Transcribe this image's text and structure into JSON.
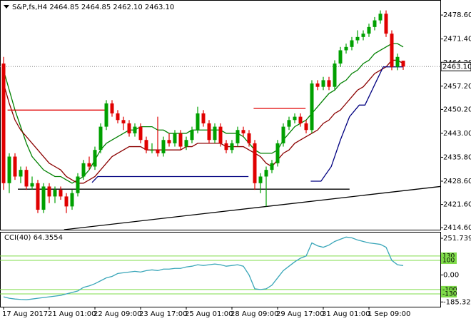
{
  "chart_data": {
    "type": "candlestick",
    "title": "S&P,fs,H4 2464.85 2464.85 2462.10 2463.10",
    "xlim": [
      -0.625,
      76.5
    ],
    "xticks": [
      {
        "value": 0,
        "label": "17 Aug 2017"
      },
      {
        "value": 8,
        "label": "21 Aug 01:00"
      },
      {
        "value": 16,
        "label": "22 Aug 09:00"
      },
      {
        "value": 24,
        "label": "23 Aug 17:00"
      },
      {
        "value": 32,
        "label": "25 Aug 01:00"
      },
      {
        "value": 40,
        "label": "28 Aug 09:00"
      },
      {
        "value": 48,
        "label": "29 Aug 17:00"
      },
      {
        "value": 56,
        "label": "31 Aug 01:00"
      },
      {
        "value": 64,
        "label": "1 Sep 09:00"
      }
    ],
    "ylim": [
      2414,
      2482.7
    ],
    "yticks": [
      {
        "value": 2478.6,
        "label": "2478.60"
      },
      {
        "value": 2471.4,
        "label": "2471.40"
      },
      {
        "value": 2464.2,
        "label": "2464.20"
      },
      {
        "value": 2457.2,
        "label": "2457.20"
      },
      {
        "value": 2450.2,
        "label": "2450.20"
      },
      {
        "value": 2443,
        "label": "2443.00"
      },
      {
        "value": 2435.8,
        "label": "2435.80"
      },
      {
        "value": 2428.6,
        "label": "2428.60"
      },
      {
        "value": 2421.6,
        "label": "2421.60"
      },
      {
        "value": 2414.6,
        "label": "2414.60"
      }
    ],
    "last_price": {
      "value": 2463.1,
      "label": "2463.10"
    },
    "up_color": "#00a000",
    "down_color": "#e00000",
    "open": [
      2464,
      2428,
      2436,
      2430,
      2432,
      2427,
      2428,
      2420,
      2427,
      2424,
      2426,
      2424,
      2421,
      2425,
      2430,
      2434,
      2433,
      2438,
      2445,
      2452,
      2449,
      2447,
      2446,
      2443,
      2445,
      2441,
      2438,
      2438,
      2437,
      2441,
      2440,
      2443,
      2439,
      2441,
      2444,
      2449,
      2446,
      2441,
      2445,
      2440,
      2438,
      2440,
      2444,
      2443,
      2440,
      2428,
      2430,
      2432,
      2434,
      2440,
      2445,
      2447,
      2448,
      2446,
      2444,
      2458,
      2457,
      2459,
      2457,
      2464,
      2468,
      2469,
      2471,
      2472,
      2473,
      2475,
      2477,
      2479,
      2473,
      2463,
      2464.85
    ],
    "high": [
      2466,
      2437,
      2437,
      2433,
      2433,
      2430,
      2429,
      2428,
      2428,
      2427,
      2427,
      2425,
      2426,
      2431,
      2435,
      2436,
      2439,
      2446,
      2453,
      2453,
      2450,
      2448,
      2447,
      2446,
      2446,
      2442,
      2440,
      2448,
      2442,
      2443,
      2444,
      2444,
      2442,
      2445,
      2451,
      2450,
      2447,
      2446,
      2446,
      2441,
      2441,
      2445,
      2445,
      2444,
      2441,
      2431,
      2433,
      2435,
      2441,
      2446,
      2448,
      2449,
      2449,
      2447,
      2459,
      2459,
      2460,
      2460,
      2465,
      2469,
      2470,
      2472,
      2474,
      2474,
      2476,
      2478,
      2480,
      2480,
      2474,
      2467,
      2464.85
    ],
    "low": [
      2426,
      2425,
      2429,
      2428,
      2426,
      2426,
      2419,
      2419,
      2422,
      2422,
      2423,
      2419,
      2420,
      2424,
      2429,
      2432,
      2432,
      2437,
      2444,
      2448,
      2446,
      2444,
      2442,
      2442,
      2440,
      2437,
      2437,
      2436,
      2436,
      2439,
      2439,
      2438,
      2438,
      2440,
      2443,
      2445,
      2440,
      2440,
      2439,
      2437,
      2437,
      2439,
      2442,
      2439,
      2426,
      2425,
      2421,
      2431,
      2433,
      2439,
      2444,
      2446,
      2445,
      2443,
      2443,
      2456,
      2456,
      2456,
      2456,
      2463,
      2467,
      2468,
      2470,
      2471,
      2472,
      2474,
      2476,
      2472,
      2462,
      2462,
      2462.1
    ],
    "close": [
      2428,
      2436,
      2430,
      2432,
      2427,
      2428,
      2420,
      2427,
      2424,
      2426,
      2424,
      2421,
      2425,
      2430,
      2434,
      2433,
      2438,
      2445,
      2452,
      2449,
      2447,
      2446,
      2443,
      2445,
      2441,
      2438,
      2438,
      2437,
      2441,
      2440,
      2443,
      2439,
      2441,
      2444,
      2449,
      2446,
      2441,
      2445,
      2440,
      2438,
      2440,
      2444,
      2443,
      2440,
      2428,
      2430,
      2432,
      2434,
      2440,
      2445,
      2447,
      2448,
      2446,
      2444,
      2458,
      2457,
      2459,
      2457,
      2464,
      2468,
      2469,
      2471,
      2472,
      2473,
      2475,
      2477,
      2479,
      2473,
      2463,
      2466,
      2463.1
    ],
    "overlays": [
      {
        "color": "#008000",
        "values": [
          2462,
          2456,
          2450,
          2445,
          2440,
          2436,
          2434,
          2432,
          2431,
          2430,
          2430,
          2429,
          2428,
          2429,
          2430,
          2432,
          2435,
          2438,
          2440,
          2441,
          2442,
          2443,
          2444,
          2444,
          2445,
          2445,
          2445,
          2444,
          2444,
          2443,
          2443,
          2443,
          2443,
          2444,
          2444,
          2444,
          2444,
          2444,
          2444,
          2443,
          2443,
          2443,
          2442,
          2440,
          2438,
          2437,
          2437,
          2437,
          2438,
          2441,
          2443,
          2445,
          2446,
          2447,
          2449,
          2451,
          2453,
          2455,
          2456,
          2458,
          2459,
          2461,
          2462,
          2464,
          2465,
          2467,
          2468,
          2469,
          2470,
          2470,
          2469
        ]
      },
      {
        "color": "#8b0000",
        "values": [
          2458,
          2452,
          2447,
          2444,
          2442,
          2440,
          2438,
          2436,
          2434,
          2433,
          2432,
          2430,
          2429,
          2428,
          2428,
          2429,
          2430,
          2432,
          2434,
          2436,
          2437,
          2438,
          2439,
          2439,
          2439,
          2438,
          2438,
          2438,
          2438,
          2438,
          2438,
          2438,
          2439,
          2439,
          2440,
          2440,
          2440,
          2440,
          2440,
          2439,
          2439,
          2439,
          2439,
          2438,
          2437,
          2436,
          2434,
          2433,
          2435,
          2437,
          2438,
          2440,
          2441,
          2442,
          2443,
          2444,
          2446,
          2447,
          2449,
          2450,
          2452,
          2454,
          2456,
          2457,
          2459,
          2461,
          2462,
          2463,
          2465,
          2465,
          2464
        ]
      },
      {
        "color": "#e00000",
        "x": [
          0.7,
          17.9
        ],
        "values": [
          2450,
          2450
        ]
      },
      {
        "color": "#e00000",
        "x": [
          43.8,
          52.9
        ],
        "values": [
          2450.5,
          2450.5
        ]
      },
      {
        "color": "#000080",
        "x": [
          15.5,
          16.5,
          42.9
        ],
        "values": [
          2428.2,
          2430,
          2430
        ]
      },
      {
        "color": "#000080",
        "x": [
          53.8,
          55.6,
          57.4,
          59,
          60.6,
          62.3,
          63.3,
          65.1,
          66.5,
          67.5,
          70
        ],
        "values": [
          2428.6,
          2428.6,
          2433,
          2441,
          2448,
          2451.5,
          2451.5,
          2458,
          2463,
          2463,
          2463
        ]
      },
      {
        "color": "#000000",
        "x": [
          2.5,
          60.6
        ],
        "values": [
          2426.2,
          2426.2
        ]
      },
      {
        "color": "#000000",
        "x": [
          10.6,
          76.5
        ],
        "values": [
          2414,
          2427
        ]
      }
    ],
    "cci": {
      "title": "CCI(40) 64.3554",
      "color": "#3aa6b9",
      "level_color": "#7fdc4a",
      "ylim": [
        -218,
        291
      ],
      "yticks": [
        251.7399,
        {
          "value": 0,
          "label": "0.00"
        },
        -185.3291
      ],
      "levels": [
        130,
        100,
        -100,
        -130
      ],
      "values": [
        -150,
        -160,
        -165,
        -168,
        -170,
        -165,
        -160,
        -155,
        -150,
        -145,
        -140,
        -130,
        -120,
        -110,
        -85,
        -75,
        -60,
        -40,
        -20,
        -10,
        10,
        15,
        20,
        25,
        20,
        30,
        35,
        30,
        40,
        40,
        45,
        45,
        55,
        60,
        70,
        65,
        70,
        75,
        70,
        60,
        65,
        70,
        60,
        0,
        -95,
        -100,
        -95,
        -70,
        -20,
        30,
        60,
        90,
        115,
        130,
        220,
        200,
        190,
        205,
        230,
        245,
        260,
        255,
        240,
        230,
        220,
        215,
        210,
        190,
        100,
        70,
        64.3554
      ]
    }
  }
}
